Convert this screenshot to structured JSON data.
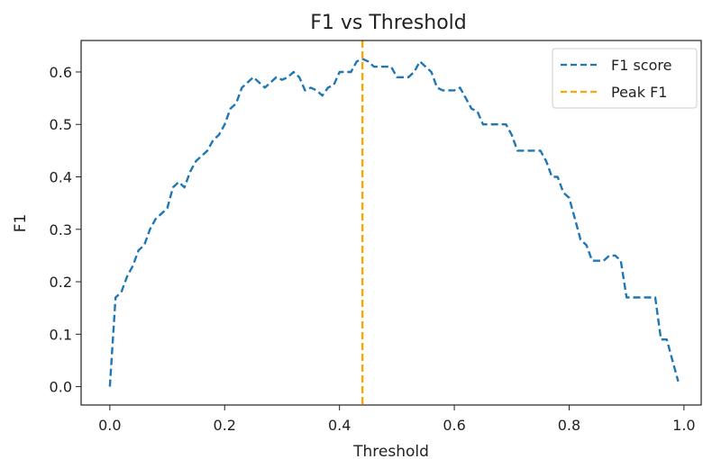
{
  "chart_data": {
    "type": "line",
    "title": "F1 vs Threshold",
    "xlabel": "Threshold",
    "ylabel": "F1",
    "xlim": [
      -0.05,
      1.03
    ],
    "ylim": [
      -0.035,
      0.66
    ],
    "xticks": [
      0.0,
      0.2,
      0.4,
      0.6,
      0.8,
      1.0
    ],
    "xtick_labels": [
      "0.0",
      "0.2",
      "0.4",
      "0.6",
      "0.8",
      "1.0"
    ],
    "yticks": [
      0.0,
      0.1,
      0.2,
      0.3,
      0.4,
      0.5,
      0.6
    ],
    "ytick_labels": [
      "0.0",
      "0.1",
      "0.2",
      "0.3",
      "0.4",
      "0.5",
      "0.6"
    ],
    "grid": false,
    "legend": {
      "position": "top-right",
      "entries": [
        "F1 score",
        "Peak F1"
      ]
    },
    "series": [
      {
        "name": "F1 score",
        "color": "#1f77b4",
        "style": "dashed",
        "x": [
          0.0,
          0.01,
          0.02,
          0.03,
          0.04,
          0.05,
          0.06,
          0.07,
          0.08,
          0.09,
          0.1,
          0.11,
          0.12,
          0.13,
          0.14,
          0.15,
          0.16,
          0.17,
          0.18,
          0.19,
          0.2,
          0.21,
          0.22,
          0.23,
          0.24,
          0.25,
          0.26,
          0.27,
          0.28,
          0.29,
          0.3,
          0.31,
          0.32,
          0.33,
          0.34,
          0.35,
          0.36,
          0.37,
          0.38,
          0.39,
          0.4,
          0.41,
          0.42,
          0.43,
          0.44,
          0.45,
          0.46,
          0.47,
          0.48,
          0.49,
          0.5,
          0.51,
          0.52,
          0.53,
          0.54,
          0.55,
          0.56,
          0.57,
          0.58,
          0.59,
          0.6,
          0.61,
          0.62,
          0.63,
          0.64,
          0.65,
          0.66,
          0.67,
          0.68,
          0.69,
          0.7,
          0.71,
          0.72,
          0.73,
          0.74,
          0.75,
          0.76,
          0.77,
          0.78,
          0.79,
          0.8,
          0.81,
          0.82,
          0.83,
          0.84,
          0.85,
          0.86,
          0.87,
          0.88,
          0.89,
          0.9,
          0.91,
          0.92,
          0.93,
          0.94,
          0.95,
          0.96,
          0.97,
          0.98,
          0.99
        ],
        "y": [
          0.0,
          0.17,
          0.18,
          0.21,
          0.23,
          0.26,
          0.27,
          0.3,
          0.32,
          0.33,
          0.34,
          0.38,
          0.39,
          0.38,
          0.41,
          0.43,
          0.44,
          0.45,
          0.47,
          0.48,
          0.5,
          0.53,
          0.54,
          0.57,
          0.58,
          0.59,
          0.58,
          0.57,
          0.58,
          0.59,
          0.585,
          0.59,
          0.6,
          0.59,
          0.565,
          0.57,
          0.565,
          0.555,
          0.57,
          0.575,
          0.6,
          0.6,
          0.6,
          0.62,
          0.625,
          0.62,
          0.61,
          0.61,
          0.61,
          0.61,
          0.59,
          0.59,
          0.59,
          0.6,
          0.62,
          0.61,
          0.6,
          0.57,
          0.565,
          0.565,
          0.565,
          0.57,
          0.55,
          0.53,
          0.525,
          0.5,
          0.5,
          0.5,
          0.5,
          0.5,
          0.48,
          0.45,
          0.45,
          0.45,
          0.45,
          0.45,
          0.43,
          0.4,
          0.4,
          0.37,
          0.36,
          0.32,
          0.28,
          0.27,
          0.24,
          0.24,
          0.24,
          0.25,
          0.25,
          0.24,
          0.17,
          0.17,
          0.17,
          0.17,
          0.17,
          0.17,
          0.09,
          0.09,
          0.05,
          0.01
        ]
      },
      {
        "name": "Peak F1",
        "color": "#ffa500",
        "style": "dashed",
        "type": "vline",
        "x": 0.44
      }
    ]
  }
}
